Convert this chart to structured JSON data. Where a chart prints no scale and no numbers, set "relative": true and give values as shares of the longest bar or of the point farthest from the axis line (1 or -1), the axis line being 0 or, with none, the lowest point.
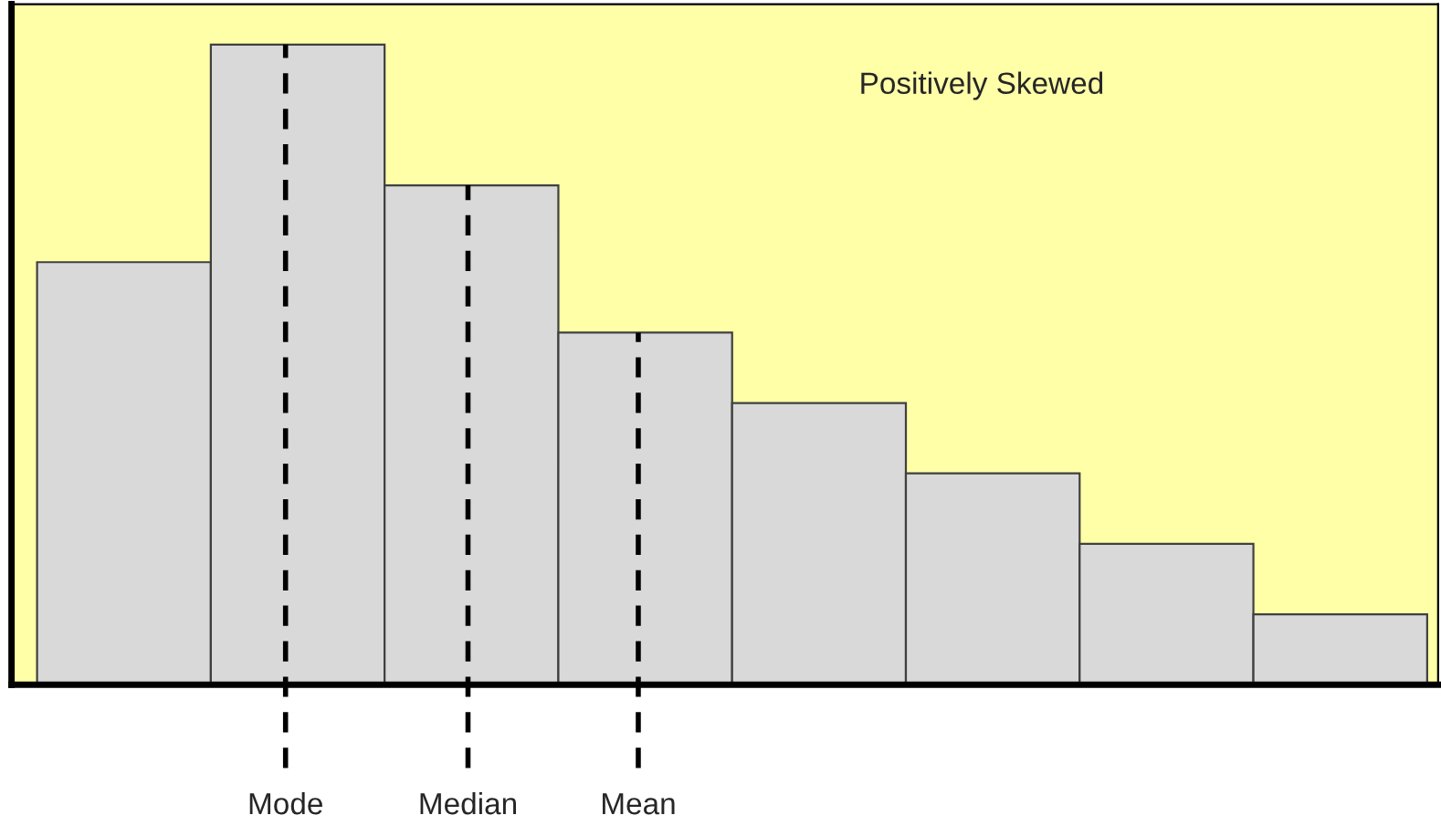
{
  "chart_data": {
    "type": "bar",
    "title": "Positively Skewed",
    "relative": true,
    "categories": [
      null,
      null,
      null,
      null,
      null,
      null,
      null,
      null
    ],
    "values": [
      0.66,
      1,
      0.78,
      0.55,
      0.44,
      0.33,
      0.22,
      0.11
    ],
    "color": "#d9d9d9",
    "annotations": [
      "Mode",
      "Median",
      "Mean"
    ]
  }
}
